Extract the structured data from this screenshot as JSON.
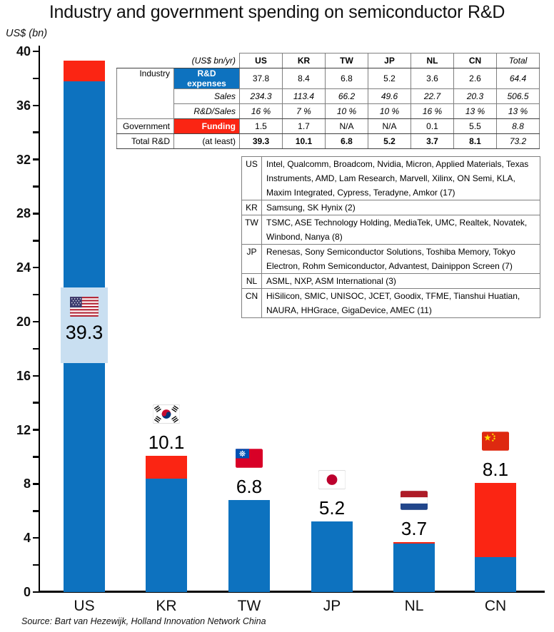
{
  "chart_data": {
    "type": "bar",
    "stacked": true,
    "title": "Industry and government spending on semiconductor R&D",
    "ylabel": "US$ (bn)",
    "ylim": [
      0,
      40
    ],
    "ytick_label_step": 4,
    "ytick_minor_step": 2,
    "grid": false,
    "legend_position": "none",
    "categories": [
      "US",
      "KR",
      "TW",
      "JP",
      "NL",
      "CN"
    ],
    "series": [
      {
        "name": "Industry R&D expenses",
        "color": "#0d72bf",
        "values": [
          37.8,
          8.4,
          6.8,
          5.2,
          3.6,
          2.6
        ]
      },
      {
        "name": "Government funding",
        "color": "#fb2513",
        "values": [
          1.5,
          1.7,
          0,
          0,
          0.1,
          5.5
        ]
      }
    ],
    "totals": [
      39.3,
      10.1,
      6.8,
      5.2,
      3.7,
      8.1
    ],
    "data_labels": [
      "39.3",
      "10.1",
      "6.8",
      "5.2",
      "3.7",
      "8.1"
    ]
  },
  "icons": {
    "us-flag-icon": "United States flag",
    "kr-flag-icon": "South Korea flag",
    "tw-flag-icon": "Taiwan flag",
    "jp-flag-icon": "Japan flag",
    "nl-flag-icon": "Netherlands flag",
    "cn-flag-icon": "China flag"
  },
  "colors": {
    "industry_blue": "#0d72bf",
    "government_red": "#fb2513",
    "us_label_panel": "#c9dff1"
  },
  "info_table": {
    "unit_header": "(US$ bn/yr)",
    "columns": [
      "US",
      "KR",
      "TW",
      "JP",
      "NL",
      "CN",
      "Total"
    ],
    "rows": [
      {
        "group": "Industry",
        "label": "R&D expenses",
        "values": [
          "37.8",
          "8.4",
          "6.8",
          "5.2",
          "3.6",
          "2.6",
          "64.4"
        ]
      },
      {
        "group": "",
        "label": "Sales",
        "values": [
          "234.3",
          "113.4",
          "66.2",
          "49.6",
          "22.7",
          "20.3",
          "506.5"
        ]
      },
      {
        "group": "",
        "label": "R&D/Sales",
        "values": [
          "16 %",
          "7 %",
          "10 %",
          "10 %",
          "16 %",
          "13 %",
          "13 %"
        ]
      },
      {
        "group": "Government",
        "label": "Funding",
        "values": [
          "1.5",
          "1.7",
          "N/A",
          "N/A",
          "0.1",
          "5.5",
          "8.8"
        ]
      },
      {
        "group": "Total R&D",
        "label": "(at least)",
        "values": [
          "39.3",
          "10.1",
          "6.8",
          "5.2",
          "3.7",
          "8.1",
          "73.2"
        ]
      }
    ]
  },
  "companies_table": {
    "rows": [
      {
        "code": "US",
        "companies": "Intel, Qualcomm, Broadcom, Nvidia, Micron, Applied Materials, Texas Instruments, AMD, Lam Research, Marvell, Xilinx, ON Semi, KLA, Maxim Integrated, Cypress, Teradyne, Amkor (17)"
      },
      {
        "code": "KR",
        "companies": "Samsung, SK Hynix (2)"
      },
      {
        "code": "TW",
        "companies": "TSMC, ASE Technology Holding, MediaTek, UMC, Realtek, Novatek, Winbond, Nanya (8)"
      },
      {
        "code": "JP",
        "companies": "Renesas, Sony Semiconductor Solutions, Toshiba Memory, Tokyo Electron, Rohm Semiconductor, Advantest, Dainippon Screen (7)"
      },
      {
        "code": "NL",
        "companies": "ASML, NXP, ASM International (3)"
      },
      {
        "code": "CN",
        "companies": "HiSilicon, SMIC, UNISOC, JCET, Goodix, TFME, Tianshui Huatian, NAURA, HHGrace, GigaDevice, AMEC (11)"
      }
    ]
  },
  "source": "Source: Bart van Hezewijk, Holland Innovation Network China"
}
